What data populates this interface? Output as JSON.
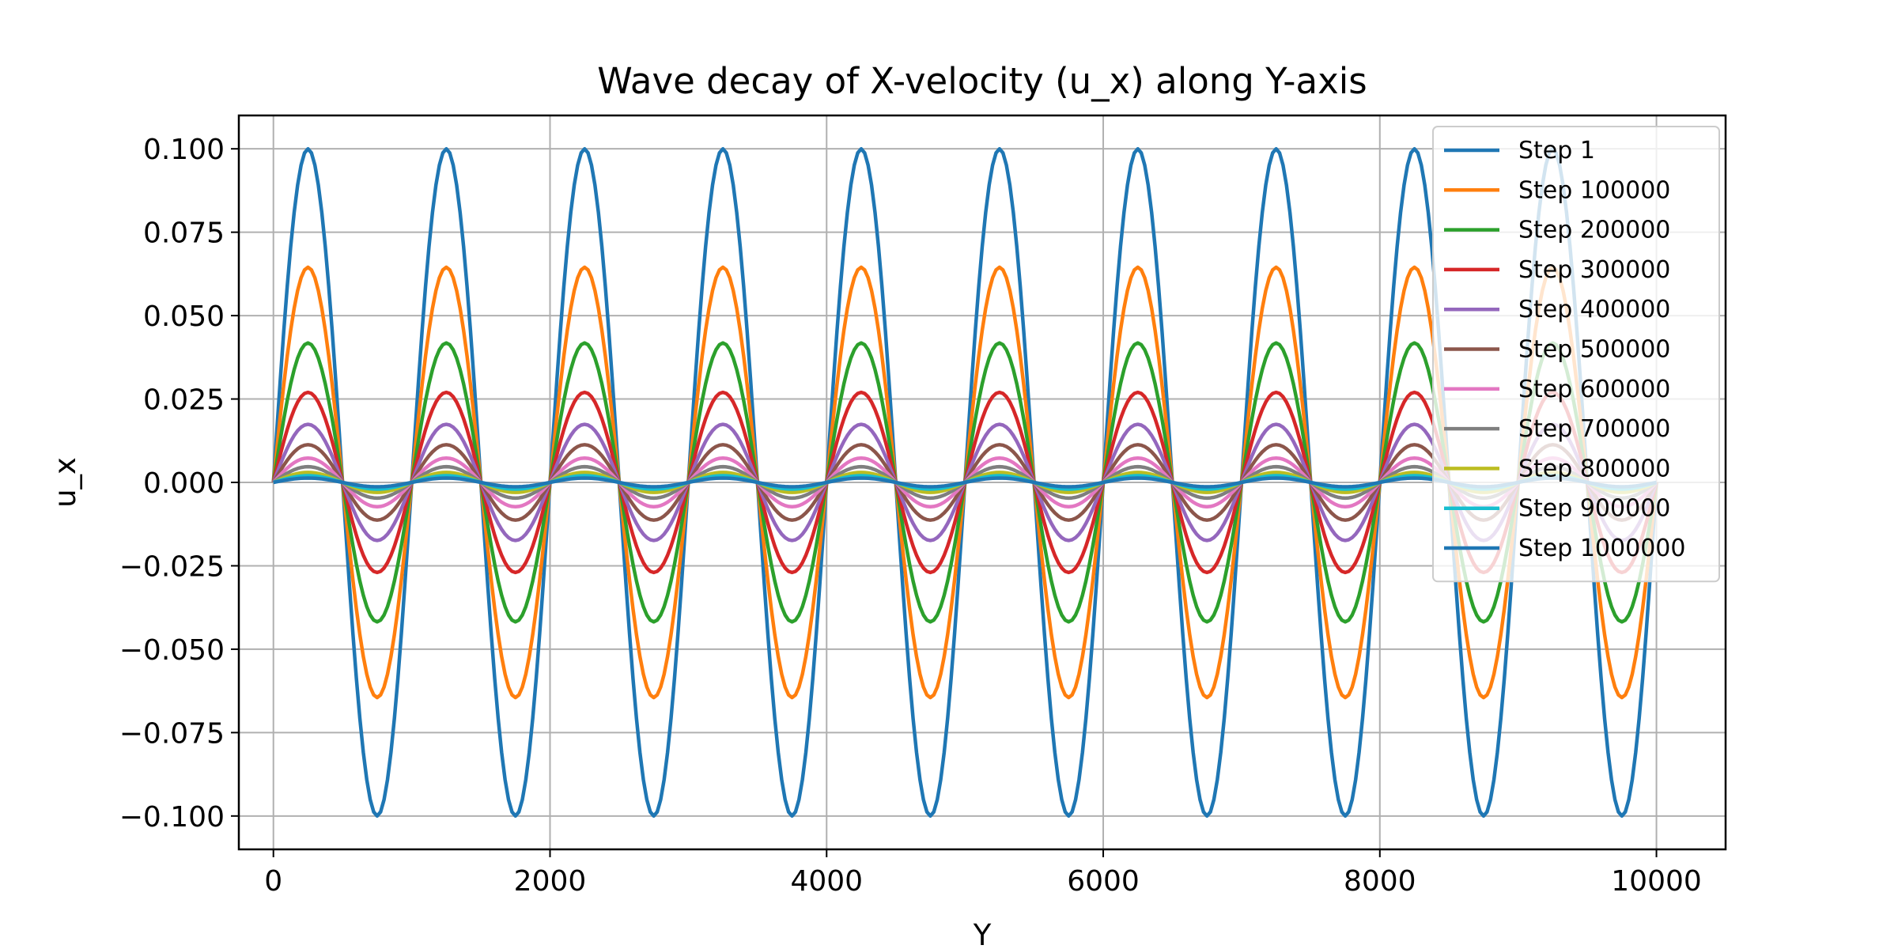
{
  "chart_data": {
    "type": "line",
    "title": "Wave decay of X-velocity (u_x) along Y-axis",
    "xlabel": "Y",
    "ylabel": "u_x",
    "xlim": [
      -250,
      10500
    ],
    "ylim": [
      -0.11,
      0.11
    ],
    "x_ticks": [
      0,
      2000,
      4000,
      6000,
      8000,
      10000
    ],
    "x_tick_labels": [
      "0",
      "2000",
      "4000",
      "6000",
      "8000",
      "10000"
    ],
    "y_ticks": [
      0.1,
      0.075,
      0.05,
      0.025,
      0.0,
      -0.025,
      -0.05,
      -0.075,
      -0.1
    ],
    "y_tick_labels": [
      "0.100",
      "0.075",
      "0.050",
      "0.025",
      "0.000",
      "−0.025",
      "−0.050",
      "−0.075",
      "−0.100"
    ],
    "grid": true,
    "legend_position": "top-right",
    "function": "u_x = A * sin(2*pi*Y/1000), sampled every 25 along Y from 0 to 10000",
    "wavelength": 1000,
    "x_range": [
      0,
      10000
    ],
    "series": [
      {
        "name": "Step 1",
        "amplitude": 0.1,
        "color": "#1f77b4"
      },
      {
        "name": "Step 100000",
        "amplitude": 0.0645,
        "color": "#ff7f0e"
      },
      {
        "name": "Step 200000",
        "amplitude": 0.0418,
        "color": "#2ca02c"
      },
      {
        "name": "Step 300000",
        "amplitude": 0.027,
        "color": "#d62728"
      },
      {
        "name": "Step 400000",
        "amplitude": 0.0174,
        "color": "#9467bd"
      },
      {
        "name": "Step 500000",
        "amplitude": 0.0113,
        "color": "#8c564b"
      },
      {
        "name": "Step 600000",
        "amplitude": 0.0073,
        "color": "#e377c2"
      },
      {
        "name": "Step 700000",
        "amplitude": 0.0047,
        "color": "#7f7f7f"
      },
      {
        "name": "Step 800000",
        "amplitude": 0.003,
        "color": "#bcbd22"
      },
      {
        "name": "Step 900000",
        "amplitude": 0.002,
        "color": "#17becf"
      },
      {
        "name": "Step 1000000",
        "amplitude": 0.0013,
        "color": "#1f77b4"
      }
    ]
  }
}
